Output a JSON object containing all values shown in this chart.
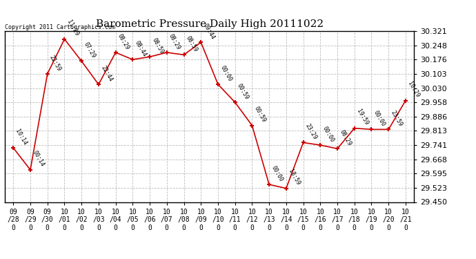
{
  "title": "Barometric Pressure Daily High 20111022",
  "copyright": "Copyright 2011 Cartographics.com",
  "x_labels": [
    "09/28",
    "09/29",
    "09/30",
    "10/01",
    "10/02",
    "10/03",
    "10/04",
    "10/05",
    "10/06",
    "10/07",
    "10/08",
    "10/09",
    "10/10",
    "10/11",
    "10/12",
    "10/13",
    "10/14",
    "10/15",
    "10/16",
    "10/17",
    "10/18",
    "10/19",
    "10/20",
    "10/21"
  ],
  "y_values": [
    29.726,
    29.614,
    30.103,
    30.28,
    30.168,
    30.049,
    30.212,
    30.176,
    30.19,
    30.212,
    30.2,
    30.264,
    30.05,
    29.958,
    29.84,
    29.539,
    29.52,
    29.753,
    29.74,
    29.722,
    29.826,
    29.82,
    29.82,
    29.967
  ],
  "point_labels": [
    "10:14",
    "00:14",
    "22:59",
    "11:29",
    "07:29",
    "22:44",
    "08:29",
    "08:44",
    "08:59",
    "08:29",
    "08:59",
    "09:44",
    "00:00",
    "00:59",
    "00:59",
    "00:00",
    "18:59",
    "23:29",
    "00:00",
    "08:29",
    "19:59",
    "00:00",
    "23:59",
    "10:29"
  ],
  "ylim_min": 29.45,
  "ylim_max": 30.321,
  "yticks": [
    29.45,
    29.523,
    29.595,
    29.668,
    29.741,
    29.813,
    29.886,
    29.958,
    30.03,
    30.103,
    30.176,
    30.248,
    30.321
  ],
  "line_color": "#cc0000",
  "marker_color": "#cc0000",
  "bg_color": "#ffffff",
  "grid_color": "#bbbbbb",
  "title_fontsize": 11,
  "label_fontsize": 6,
  "tick_fontsize": 7,
  "ytick_fontsize": 8,
  "copyright_fontsize": 6
}
